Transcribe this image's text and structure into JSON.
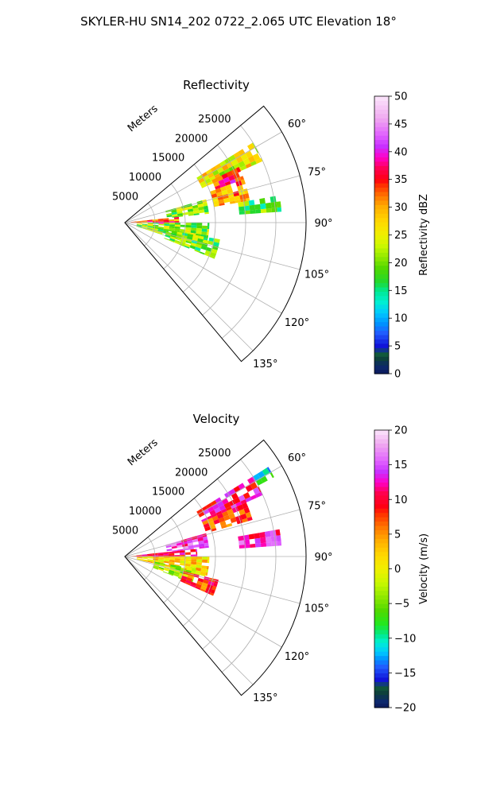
{
  "figure_title": "SKYLER-HU  SN14_202  0722_2.065 UTC Elevation 18°",
  "chart_data": [
    {
      "type": "heatmap",
      "projection": "polar-sector",
      "title": "Reflectivity",
      "radial_label": "Meters",
      "radial_ticks": [
        "5000",
        "10000",
        "15000",
        "20000",
        "25000"
      ],
      "radial_tick_values": [
        5000,
        10000,
        15000,
        20000,
        25000
      ],
      "rlim": [
        0,
        30000
      ],
      "angular_range_deg": [
        50,
        140
      ],
      "angular_ticks": [
        "60°",
        "75°",
        "90°",
        "105°",
        "120°",
        "135°"
      ],
      "angular_tick_values": [
        60,
        75,
        90,
        105,
        120,
        135
      ],
      "grid": true,
      "colorbar": {
        "label": "Reflectivity dBZ",
        "range": [
          0,
          50
        ],
        "ticks": [
          "0",
          "5",
          "10",
          "15",
          "20",
          "25",
          "30",
          "35",
          "40",
          "45",
          "50"
        ],
        "tick_values": [
          0,
          5,
          10,
          15,
          20,
          25,
          30,
          35,
          40,
          45,
          50
        ]
      },
      "echo_regions": [
        {
          "az": [
            58,
            66
          ],
          "r": [
            14000,
            25000
          ],
          "dominant_value": 25
        },
        {
          "az": [
            64,
            70
          ],
          "r": [
            16000,
            21000
          ],
          "dominant_value": 36
        },
        {
          "az": [
            70,
            80
          ],
          "r": [
            15000,
            21000
          ],
          "dominant_value": 30
        },
        {
          "az": [
            74,
            84
          ],
          "r": [
            7000,
            14000
          ],
          "dominant_value": 20
        },
        {
          "az": [
            84,
            92
          ],
          "r": [
            1000,
            9000
          ],
          "dominant_value": 33
        },
        {
          "az": [
            90,
            108
          ],
          "r": [
            2000,
            14000
          ],
          "dominant_value": 21
        },
        {
          "az": [
            100,
            112
          ],
          "r": [
            7000,
            16000
          ],
          "dominant_value": 19
        },
        {
          "az": [
            80,
            86
          ],
          "r": [
            19000,
            26000
          ],
          "dominant_value": 19
        }
      ]
    },
    {
      "type": "heatmap",
      "projection": "polar-sector",
      "title": "Velocity",
      "radial_label": "Meters",
      "radial_ticks": [
        "5000",
        "10000",
        "15000",
        "20000",
        "25000"
      ],
      "radial_tick_values": [
        5000,
        10000,
        15000,
        20000,
        25000
      ],
      "rlim": [
        0,
        30000
      ],
      "angular_range_deg": [
        50,
        140
      ],
      "angular_ticks": [
        "60°",
        "75°",
        "90°",
        "105°",
        "120°",
        "135°"
      ],
      "angular_tick_values": [
        60,
        75,
        90,
        105,
        120,
        135
      ],
      "grid": true,
      "colorbar": {
        "label": "Velocity (m/s)",
        "range": [
          -20,
          20
        ],
        "ticks": [
          "−20",
          "−15",
          "−10",
          "−5",
          "0",
          "5",
          "10",
          "15",
          "20"
        ],
        "tick_values": [
          -20,
          -15,
          -10,
          -5,
          0,
          5,
          10,
          15,
          20
        ]
      },
      "echo_regions": [
        {
          "az": [
            58,
            66
          ],
          "r": [
            14000,
            25000
          ],
          "dominant_value": 12
        },
        {
          "az": [
            66,
            74
          ],
          "r": [
            14000,
            22000
          ],
          "dominant_value": 8
        },
        {
          "az": [
            74,
            84
          ],
          "r": [
            7000,
            14000
          ],
          "dominant_value": 14
        },
        {
          "az": [
            84,
            92
          ],
          "r": [
            1000,
            12000
          ],
          "dominant_value": 10
        },
        {
          "az": [
            90,
            104
          ],
          "r": [
            2000,
            14000
          ],
          "dominant_value": 2
        },
        {
          "az": [
            100,
            112
          ],
          "r": [
            5000,
            12000
          ],
          "dominant_value": -3
        },
        {
          "az": [
            104,
            114
          ],
          "r": [
            10000,
            16000
          ],
          "dominant_value": 8
        },
        {
          "az": [
            58,
            62
          ],
          "r": [
            25000,
            28000
          ],
          "dominant_value": -10
        },
        {
          "az": [
            80,
            86
          ],
          "r": [
            19000,
            26000
          ],
          "dominant_value": 13
        }
      ]
    }
  ]
}
